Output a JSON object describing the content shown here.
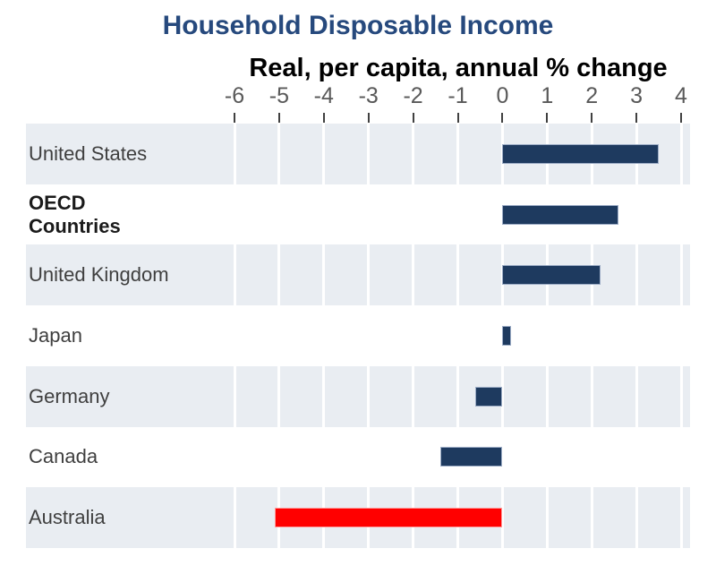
{
  "chart_data": {
    "type": "bar",
    "orientation": "horizontal",
    "title": "Household Disposable Income",
    "subtitle": "Real, per capita, annual % change",
    "categories": [
      "United States",
      "OECD\nCountries",
      "United Kingdom",
      "Japan",
      "Germany",
      "Canada",
      "Australia"
    ],
    "values": [
      3.5,
      2.6,
      2.2,
      0.2,
      -0.6,
      -1.4,
      -5.1
    ],
    "bar_colors": [
      "#1E3A5F",
      "#1E3A5F",
      "#1E3A5F",
      "#1E3A5F",
      "#1E3A5F",
      "#1E3A5F",
      "#FF0000"
    ],
    "bar_border_colors": [
      "#9DADC6",
      "#9DADC6",
      "#9DADC6",
      "#9DADC6",
      "#9DADC6",
      "#9DADC6",
      "#FF9B9B"
    ],
    "label_bold": [
      false,
      true,
      false,
      false,
      false,
      false,
      false
    ],
    "xlim": [
      -6,
      4
    ],
    "x_ticks": [
      -6,
      -5,
      -4,
      -3,
      -2,
      -1,
      0,
      1,
      2,
      3,
      4
    ],
    "grid": true,
    "legend": "none",
    "row_striping": "alternating, first row shaded",
    "styles": {
      "title_color": "#26497D",
      "subtitle_color": "#000000",
      "tick_label_color": "#595959",
      "tick_mark_color": "#404040",
      "row_label_color": "#3F3F3F",
      "row_label_bold_color": "#1A1A1A",
      "stripe_color": "#E9EDF2",
      "gridline_color": "#FFFFFF",
      "background_color": "#FFFFFF"
    }
  }
}
